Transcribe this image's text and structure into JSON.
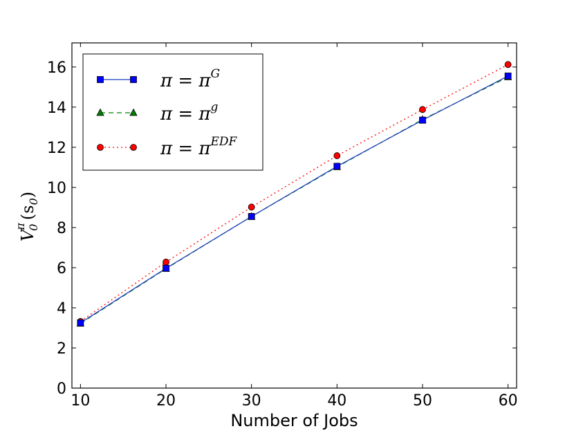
{
  "chart_data": {
    "type": "line",
    "title": "",
    "xlabel": "Number of Jobs",
    "ylabel": {
      "base": "V",
      "sub": "0",
      "sup": "π",
      "args": "(s",
      "args_sub": "0",
      "args_close": ")"
    },
    "xlim": [
      9,
      61
    ],
    "ylim": [
      0,
      17.2
    ],
    "xticks": [
      10,
      20,
      30,
      40,
      50,
      60
    ],
    "yticks": [
      0,
      2,
      4,
      6,
      8,
      10,
      12,
      14,
      16
    ],
    "x": [
      10,
      20,
      30,
      40,
      50,
      60
    ],
    "grid": false,
    "legend_position": "top-left",
    "series": [
      {
        "name_base": "π = π",
        "name_sup": "G",
        "values": [
          3.25,
          5.97,
          8.55,
          11.05,
          13.35,
          15.55
        ],
        "color": "#0000ff",
        "line_color": "#1f3fbf",
        "marker": "square",
        "linestyle": "solid"
      },
      {
        "name_base": "π = π",
        "name_sup": "g",
        "values": [
          3.22,
          5.95,
          8.55,
          11.02,
          13.38,
          15.5
        ],
        "color": "#007f00",
        "line_color": "#007f00",
        "marker": "triangle",
        "linestyle": "dashed"
      },
      {
        "name_base": "π = π",
        "name_sup": "EDF",
        "values": [
          3.32,
          6.28,
          9.02,
          11.58,
          13.88,
          16.12
        ],
        "color": "#ff0000",
        "line_color": "#ff0000",
        "marker": "circle",
        "linestyle": "dotted"
      }
    ]
  }
}
